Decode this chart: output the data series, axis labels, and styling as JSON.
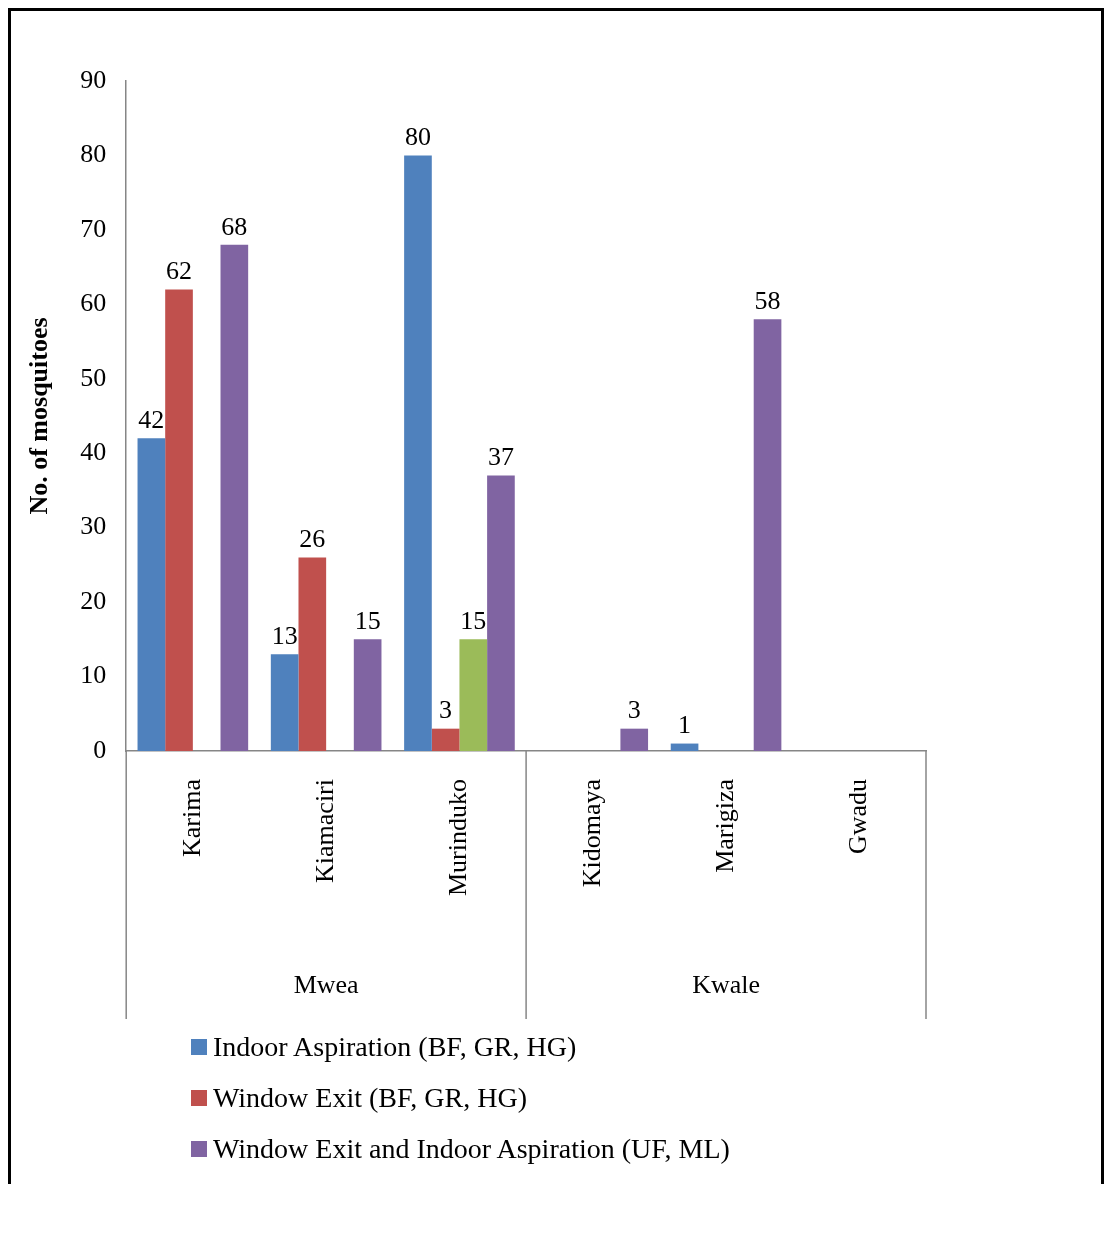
{
  "chart_data": {
    "type": "bar",
    "ylabel": "No. of mosquitoes",
    "categories": [
      "Karima",
      "Kiamaciri",
      "Murinduko",
      "Kidomaya",
      "Marigiza",
      "Gwadu"
    ],
    "series": [
      {
        "name": "Indoor Aspiration (BF, GR, HG)",
        "color": "#4f81bd",
        "values": [
          42,
          13,
          80,
          null,
          1,
          null
        ]
      },
      {
        "name": "Window Exit (BF, GR, HG)",
        "color": "#c0504d",
        "values": [
          62,
          26,
          3,
          null,
          null,
          null
        ]
      },
      {
        "color": "#9bbb59",
        "values": [
          null,
          null,
          15,
          null,
          null,
          null
        ]
      },
      {
        "name": "Window Exit and Indoor Aspiration (UF, ML)",
        "color": "#8064a2",
        "values": [
          68,
          15,
          37,
          3,
          58,
          null
        ]
      }
    ],
    "ylim": [
      0,
      90
    ],
    "yticks": [
      0,
      10,
      20,
      30,
      40,
      50,
      60,
      70,
      80,
      90
    ],
    "grid": false,
    "legend": "bottom",
    "data_labels": true,
    "annotations": [
      "Mwea",
      "Kwale"
    ]
  }
}
